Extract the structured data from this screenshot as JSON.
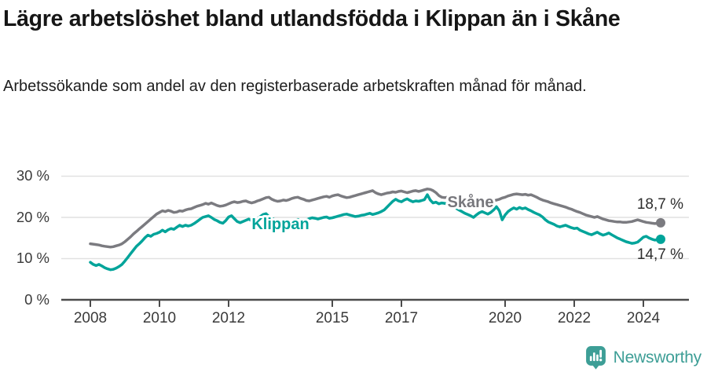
{
  "header": {
    "title": "Lägre arbetslöshet bland utlandsfödda i Klippan än i Skåne",
    "subtitle": "Arbetssökande som andel av den registerbaserade arbetskraften månad för månad."
  },
  "footer": {
    "brand": "Newsworthy",
    "logo_icon": "newsworthy-bar-chart-pin-icon",
    "brand_color": "#3d9e96"
  },
  "theme": {
    "background": "#ffffff",
    "title_color": "#161616",
    "grid_color": "#e1e1e1",
    "axis_color": "#4b4b4b",
    "axis_text_color": "#3a3a3a",
    "skane_gray": "#7b7b80",
    "klippan_teal": "#00a49a"
  },
  "chart_data": {
    "type": "line",
    "title": "Lägre arbetslöshet bland utlandsfödda i Klippan än i Skåne",
    "subtitle": "Arbetssökande som andel av den registerbaserade arbetskraften månad för månad.",
    "grid": "horizontal",
    "legend_position": "inline-labels",
    "x_axis": {
      "ticks": [
        2008,
        2010,
        2012,
        2015,
        2017,
        2020,
        2022,
        2024
      ],
      "tick_labels": [
        "2008",
        "2010",
        "2012",
        "2015",
        "2017",
        "2020",
        "2022",
        "2024"
      ],
      "range": [
        2008.0,
        2024.5
      ]
    },
    "y_axis": {
      "ticks": [
        0,
        10,
        20,
        30
      ],
      "tick_labels": [
        "0 %",
        "10 %",
        "20 %",
        "30 %"
      ],
      "range": [
        0,
        30
      ],
      "unit": "%"
    },
    "series": [
      {
        "name": "Skåne",
        "slug": "skane",
        "color": "#7b7b80",
        "end_label": "18,7 %",
        "end_value": 18.7,
        "start_year": 2008,
        "interval_months": 1,
        "values": [
          13.6,
          13.5,
          13.4,
          13.3,
          13.1,
          13.0,
          12.9,
          12.8,
          12.9,
          13.1,
          13.3,
          13.6,
          14.1,
          14.7,
          15.3,
          16.0,
          16.6,
          17.2,
          17.8,
          18.4,
          19.0,
          19.6,
          20.2,
          20.8,
          21.2,
          21.6,
          21.4,
          21.7,
          21.5,
          21.2,
          21.3,
          21.6,
          21.5,
          21.8,
          22.0,
          22.1,
          22.4,
          22.7,
          22.9,
          23.1,
          23.4,
          23.2,
          23.5,
          23.2,
          22.9,
          22.7,
          22.8,
          23.0,
          23.3,
          23.6,
          23.8,
          23.6,
          23.7,
          23.9,
          24.0,
          23.7,
          23.5,
          23.7,
          24.0,
          24.2,
          24.5,
          24.8,
          24.9,
          24.4,
          24.1,
          23.9,
          24.0,
          24.2,
          24.1,
          24.3,
          24.6,
          24.8,
          24.9,
          24.6,
          24.4,
          24.1,
          24.0,
          24.2,
          24.4,
          24.6,
          24.8,
          25.0,
          25.1,
          24.9,
          25.2,
          25.4,
          25.5,
          25.2,
          25.0,
          24.8,
          24.9,
          25.1,
          25.3,
          25.5,
          25.7,
          25.9,
          26.1,
          26.3,
          26.5,
          26.0,
          25.7,
          25.5,
          25.7,
          25.9,
          26.0,
          26.2,
          26.1,
          26.3,
          26.4,
          26.2,
          26.0,
          26.2,
          26.4,
          26.5,
          26.3,
          26.5,
          26.7,
          26.9,
          26.8,
          26.5,
          26.0,
          25.3,
          24.9,
          24.8,
          24.9,
          24.7,
          24.6,
          24.5,
          24.5,
          24.4,
          24.3,
          24.2,
          24.1,
          24.3,
          24.5,
          24.3,
          24.1,
          23.9,
          23.8,
          23.9,
          24.0,
          24.2,
          24.4,
          24.7,
          24.9,
          25.2,
          25.4,
          25.6,
          25.7,
          25.6,
          25.5,
          25.6,
          25.4,
          25.5,
          25.2,
          24.9,
          24.5,
          24.2,
          24.0,
          23.8,
          23.5,
          23.3,
          23.1,
          22.9,
          22.7,
          22.5,
          22.2,
          22.0,
          21.7,
          21.4,
          21.2,
          20.9,
          20.6,
          20.4,
          20.2,
          20.0,
          20.2,
          19.9,
          19.6,
          19.4,
          19.2,
          19.1,
          19.0,
          18.9,
          18.9,
          18.8,
          18.8,
          18.9,
          19.0,
          19.2,
          19.4,
          19.2,
          19.0,
          18.8,
          18.7,
          18.6,
          18.5,
          18.6,
          18.7
        ]
      },
      {
        "name": "Klippan",
        "slug": "klippan",
        "color": "#00a49a",
        "end_label": "14,7 %",
        "end_value": 14.7,
        "start_year": 2008,
        "interval_months": 1,
        "values": [
          9.1,
          8.6,
          8.3,
          8.6,
          8.2,
          7.8,
          7.5,
          7.3,
          7.4,
          7.7,
          8.1,
          8.6,
          9.4,
          10.3,
          11.2,
          12.1,
          13.0,
          13.6,
          14.3,
          15.1,
          15.7,
          15.4,
          15.9,
          16.1,
          16.4,
          16.9,
          16.5,
          17.0,
          17.3,
          17.1,
          17.6,
          18.1,
          17.8,
          18.1,
          17.9,
          18.1,
          18.5,
          19.0,
          19.5,
          20.0,
          20.2,
          20.4,
          20.0,
          19.5,
          19.2,
          18.8,
          18.6,
          19.2,
          20.1,
          20.4,
          19.7,
          19.0,
          18.7,
          19.0,
          19.3,
          19.6,
          19.2,
          19.4,
          19.7,
          20.2,
          20.7,
          20.9,
          20.2,
          19.8,
          19.4,
          19.1,
          18.9,
          19.2,
          18.9,
          19.1,
          19.0,
          19.3,
          19.5,
          19.2,
          19.0,
          19.4,
          19.7,
          19.9,
          19.8,
          19.6,
          19.8,
          20.0,
          20.1,
          19.8,
          19.9,
          20.1,
          20.3,
          20.5,
          20.7,
          20.8,
          20.6,
          20.4,
          20.2,
          20.3,
          20.5,
          20.6,
          20.8,
          21.0,
          20.7,
          20.9,
          21.1,
          21.4,
          21.8,
          22.5,
          23.2,
          23.9,
          24.4,
          24.0,
          23.8,
          24.2,
          24.5,
          24.1,
          23.8,
          24.0,
          23.9,
          24.1,
          24.3,
          25.5,
          24.2,
          23.5,
          23.7,
          23.3,
          23.5,
          23.4,
          23.2,
          23.0,
          22.6,
          22.2,
          21.8,
          21.4,
          21.0,
          20.7,
          20.4,
          20.0,
          20.6,
          21.1,
          21.4,
          21.1,
          20.8,
          21.2,
          21.8,
          22.6,
          21.6,
          19.4,
          20.6,
          21.4,
          21.9,
          22.3,
          22.0,
          22.4,
          22.1,
          22.3,
          21.9,
          21.6,
          21.2,
          20.9,
          20.6,
          20.1,
          19.4,
          18.9,
          18.6,
          18.3,
          17.9,
          17.7,
          17.9,
          18.1,
          17.8,
          17.5,
          17.3,
          17.4,
          16.9,
          16.6,
          16.3,
          16.0,
          15.8,
          16.1,
          16.4,
          16.0,
          15.7,
          15.9,
          16.2,
          15.8,
          15.4,
          15.0,
          14.7,
          14.4,
          14.1,
          13.9,
          13.7,
          13.8,
          14.0,
          14.6,
          15.2,
          15.4,
          15.0,
          14.7,
          14.5,
          14.6,
          14.7
        ]
      }
    ]
  }
}
